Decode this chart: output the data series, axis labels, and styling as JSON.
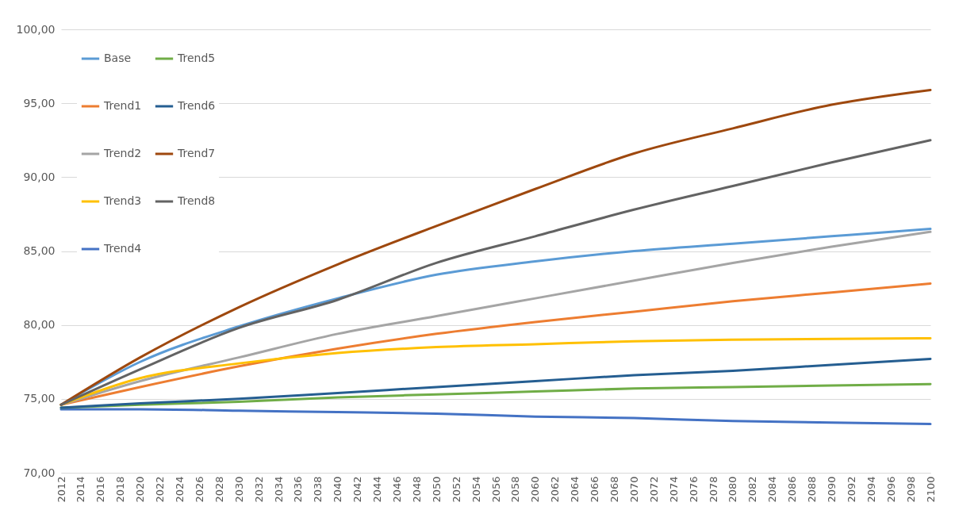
{
  "chart_data": {
    "type": "line",
    "xlim": [
      2012,
      2100
    ],
    "xticks": [
      2012,
      2014,
      2016,
      2018,
      2020,
      2022,
      2024,
      2026,
      2028,
      2030,
      2032,
      2034,
      2036,
      2038,
      2040,
      2042,
      2044,
      2046,
      2048,
      2050,
      2052,
      2054,
      2056,
      2058,
      2060,
      2062,
      2064,
      2066,
      2068,
      2070,
      2072,
      2074,
      2076,
      2078,
      2080,
      2082,
      2084,
      2086,
      2088,
      2090,
      2092,
      2094,
      2096,
      2098,
      2100
    ],
    "ylim": [
      70,
      100
    ],
    "yticks": [
      {
        "value": 70,
        "label": "70,00"
      },
      {
        "value": 75,
        "label": "75,00"
      },
      {
        "value": 80,
        "label": "80,00"
      },
      {
        "value": 85,
        "label": "85,00"
      },
      {
        "value": 90,
        "label": "90,00"
      },
      {
        "value": 95,
        "label": "95,00"
      },
      {
        "value": 100,
        "label": "100,00"
      }
    ],
    "grid": "y",
    "legend": "top left",
    "marker": "none",
    "series": [
      {
        "name": "Base",
        "color": "#5b9bd5",
        "x": [
          2012,
          2020,
          2030,
          2040,
          2050,
          2060,
          2070,
          2080,
          2090,
          2100
        ],
        "values": [
          74.6,
          77.5,
          79.9,
          81.8,
          83.4,
          84.3,
          85.0,
          85.5,
          86.0,
          86.5
        ]
      },
      {
        "name": "Trend1",
        "color": "#ed7d31",
        "x": [
          2012,
          2020,
          2030,
          2040,
          2050,
          2060,
          2070,
          2080,
          2090,
          2100
        ],
        "values": [
          74.6,
          75.8,
          77.2,
          78.4,
          79.4,
          80.2,
          80.9,
          81.6,
          82.2,
          82.8
        ]
      },
      {
        "name": "Trend2",
        "color": "#a5a5a5",
        "x": [
          2012,
          2020,
          2030,
          2040,
          2050,
          2060,
          2070,
          2080,
          2090,
          2100
        ],
        "values": [
          74.6,
          76.2,
          77.8,
          79.4,
          80.6,
          81.8,
          83.0,
          84.2,
          85.3,
          86.3
        ]
      },
      {
        "name": "Trend3",
        "color": "#ffc000",
        "x": [
          2012,
          2020,
          2030,
          2040,
          2050,
          2060,
          2070,
          2080,
          2090,
          2100
        ],
        "values": [
          74.6,
          76.4,
          77.4,
          78.1,
          78.5,
          78.7,
          78.9,
          79.0,
          79.05,
          79.1
        ]
      },
      {
        "name": "Trend4",
        "color": "#4472c4",
        "x": [
          2012,
          2020,
          2030,
          2040,
          2050,
          2060,
          2070,
          2080,
          2090,
          2100
        ],
        "values": [
          74.3,
          74.3,
          74.2,
          74.1,
          74.0,
          73.8,
          73.7,
          73.5,
          73.4,
          73.3
        ]
      },
      {
        "name": "Trend5",
        "color": "#70ad47",
        "x": [
          2012,
          2020,
          2030,
          2040,
          2050,
          2060,
          2070,
          2080,
          2090,
          2100
        ],
        "values": [
          74.4,
          74.6,
          74.8,
          75.1,
          75.3,
          75.5,
          75.7,
          75.8,
          75.9,
          76.0
        ]
      },
      {
        "name": "Trend6",
        "color": "#255e91",
        "x": [
          2012,
          2020,
          2030,
          2040,
          2050,
          2060,
          2070,
          2080,
          2090,
          2100
        ],
        "values": [
          74.4,
          74.7,
          75.0,
          75.4,
          75.8,
          76.2,
          76.6,
          76.9,
          77.3,
          77.7
        ]
      },
      {
        "name": "Trend7",
        "color": "#9e480e",
        "x": [
          2012,
          2020,
          2030,
          2040,
          2050,
          2060,
          2070,
          2080,
          2090,
          2100
        ],
        "values": [
          74.6,
          77.8,
          81.2,
          84.1,
          86.7,
          89.2,
          91.6,
          93.3,
          94.9,
          95.9
        ]
      },
      {
        "name": "Trend8",
        "color": "#636363",
        "x": [
          2012,
          2020,
          2030,
          2040,
          2050,
          2060,
          2070,
          2080,
          2090,
          2100
        ],
        "values": [
          74.6,
          77.0,
          79.8,
          81.7,
          84.2,
          86.0,
          87.8,
          89.4,
          91.0,
          92.5
        ]
      }
    ]
  }
}
